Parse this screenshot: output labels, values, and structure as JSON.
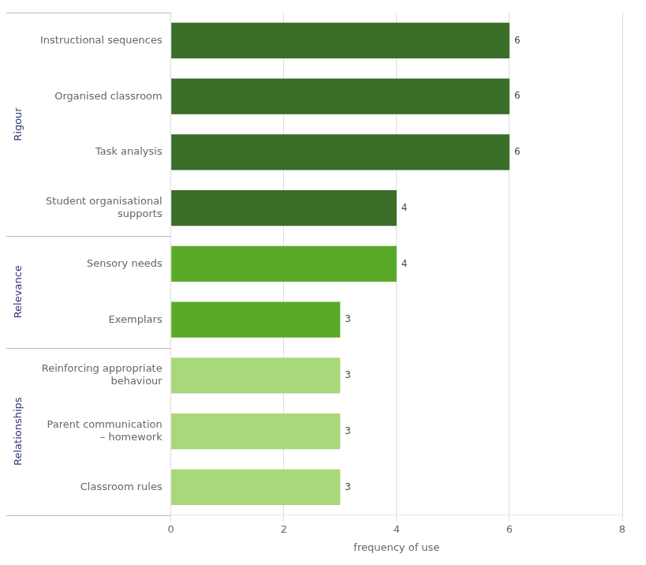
{
  "chart_data": {
    "type": "bar",
    "orientation": "horizontal",
    "categories": [
      "Instructional sequences",
      "Organised classroom",
      "Task analysis",
      "Student organisational\nsupports",
      "Sensory needs",
      "Exemplars",
      "Reinforcing appropriate\nbehaviour",
      "Parent communication\n– homework",
      "Classroom rules"
    ],
    "values": [
      6,
      6,
      6,
      4,
      4,
      3,
      3,
      3,
      3
    ],
    "colors": [
      "#3a6e28",
      "#3a6e28",
      "#3a6e28",
      "#3a6e28",
      "#5aaa2a",
      "#5aaa2a",
      "#a8d87a",
      "#a8d87a",
      "#a8d87a"
    ],
    "x_label": "frequency of use",
    "xlim": [
      0,
      8
    ],
    "xticks": [
      0,
      2,
      4,
      6,
      8
    ],
    "grid": true,
    "data_labels": true,
    "groups": [
      {
        "name": "Rigour",
        "categories": [
          "Instructional sequences",
          "Organised classroom",
          "Task analysis",
          "Student organisational\nsupports"
        ]
      },
      {
        "name": "Relevance",
        "categories": [
          "Sensory needs",
          "Exemplars"
        ]
      },
      {
        "name": "Relationships",
        "categories": [
          "Reinforcing appropriate\nbehaviour",
          "Parent communication\n– homework",
          "Classroom rules"
        ]
      }
    ]
  }
}
